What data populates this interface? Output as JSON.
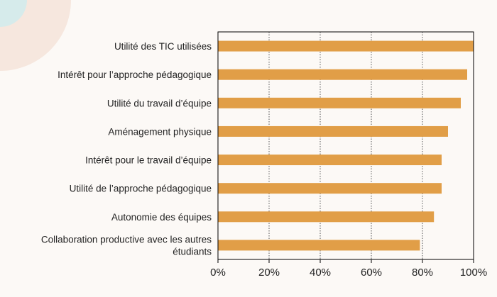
{
  "colors": {
    "background": "#fcf9f6",
    "bar": "#e19e47",
    "axis": "#000000",
    "gridline": "#555555",
    "decor_teal": "#d6ebeb",
    "decor_peach": "#f6e7de"
  },
  "chart_data": {
    "type": "bar",
    "orientation": "horizontal",
    "categories": [
      "Utilité des TIC utilisées",
      "Intérêt pour l’approche pédagogique",
      "Utilité du travail d’équipe",
      "Aménagement physique",
      "Intérêt pour le travail d’équipe",
      "Utilité de l’approche pédagogique",
      "Autonomie des équipes",
      "Collaboration productive avec les autres étudiants"
    ],
    "category_lines": [
      [
        "Utilité des TIC utilisées"
      ],
      [
        "Intérêt pour l’approche pédagogique"
      ],
      [
        "Utilité du travail d’équipe"
      ],
      [
        "Aménagement physique"
      ],
      [
        "Intérêt pour le travail d’équipe"
      ],
      [
        "Utilité de l’approche pédagogique"
      ],
      [
        "Autonomie des équipes"
      ],
      [
        "Collaboration productive avec les autres",
        "étudiants"
      ]
    ],
    "values": [
      100,
      97.5,
      95,
      90,
      87.5,
      87.5,
      84.5,
      79
    ],
    "xlim": [
      0,
      100
    ],
    "ticks": [
      0,
      20,
      40,
      60,
      80,
      100
    ],
    "tick_labels": [
      "0%",
      "20%",
      "40%",
      "60%",
      "80%",
      "100%"
    ],
    "grid": "vertical dotted",
    "title": "",
    "xlabel": "",
    "ylabel": ""
  }
}
